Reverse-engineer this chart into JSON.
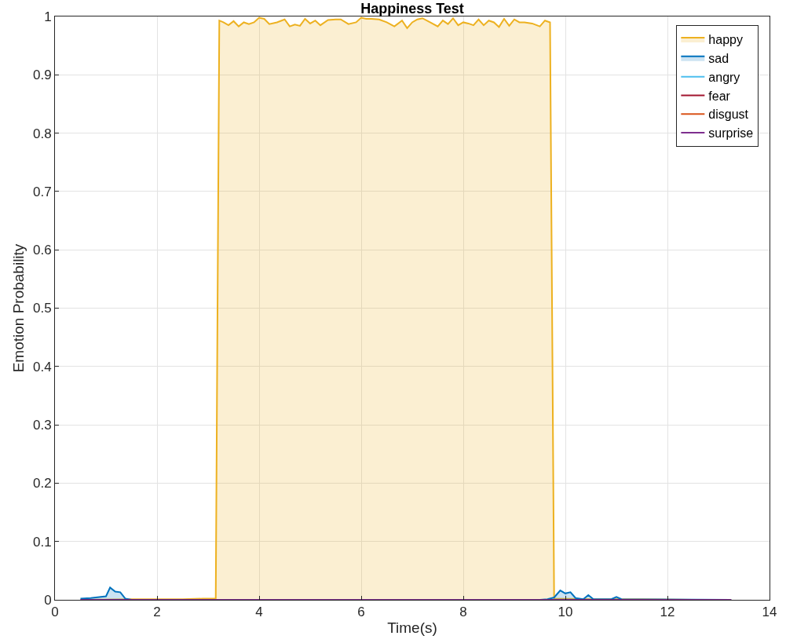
{
  "chart_data": {
    "type": "area",
    "title": "Happiness Test",
    "xlabel": "Time(s)",
    "ylabel": "Emotion Probability",
    "xlim": [
      0,
      14
    ],
    "xticks": [
      0,
      2,
      4,
      6,
      8,
      10,
      12,
      14
    ],
    "ylim": [
      0,
      1
    ],
    "yticks": [
      0,
      0.1,
      0.2,
      0.3,
      0.4,
      0.5,
      0.6,
      0.7,
      0.8,
      0.9,
      1
    ],
    "grid": true,
    "legend": "top right",
    "line_style": "solid",
    "marker": "none",
    "series": [
      {
        "name": "happy",
        "color": "#edb120",
        "x": [
          0.5,
          1.5,
          2.5,
          2.9,
          3.15,
          3.22,
          3.3,
          3.4,
          3.5,
          3.6,
          3.7,
          3.8,
          3.9,
          4.0,
          4.1,
          4.2,
          4.35,
          4.5,
          4.6,
          4.7,
          4.8,
          4.9,
          5.0,
          5.1,
          5.2,
          5.35,
          5.5,
          5.6,
          5.75,
          5.9,
          6.0,
          6.1,
          6.2,
          6.35,
          6.5,
          6.65,
          6.8,
          6.9,
          7.0,
          7.1,
          7.2,
          7.35,
          7.5,
          7.6,
          7.7,
          7.8,
          7.9,
          8.0,
          8.1,
          8.2,
          8.3,
          8.4,
          8.5,
          8.6,
          8.7,
          8.8,
          8.9,
          9.0,
          9.1,
          9.2,
          9.35,
          9.5,
          9.6,
          9.7,
          9.78,
          10.5,
          11.5,
          12.5,
          13.25
        ],
        "values": [
          0,
          0.001,
          0.001,
          0.002,
          0.002,
          0.993,
          0.99,
          0.985,
          0.992,
          0.983,
          0.99,
          0.987,
          0.99,
          0.998,
          0.996,
          0.987,
          0.99,
          0.995,
          0.983,
          0.986,
          0.984,
          0.996,
          0.988,
          0.993,
          0.985,
          0.994,
          0.995,
          0.995,
          0.987,
          0.99,
          0.998,
          0.996,
          0.996,
          0.995,
          0.99,
          0.983,
          0.993,
          0.98,
          0.99,
          0.995,
          0.997,
          0.99,
          0.983,
          0.993,
          0.987,
          0.997,
          0.985,
          0.99,
          0.988,
          0.985,
          0.995,
          0.985,
          0.993,
          0.99,
          0.982,
          0.996,
          0.984,
          0.995,
          0.99,
          0.99,
          0.988,
          0.983,
          0.993,
          0.99,
          0.002,
          0.001,
          0.001,
          0,
          0
        ]
      },
      {
        "name": "sad",
        "color": "#0072bd",
        "x": [
          0.5,
          0.7,
          0.9,
          1.0,
          1.08,
          1.18,
          1.28,
          1.38,
          1.5,
          3.0,
          9.5,
          9.65,
          9.78,
          9.9,
          10.0,
          10.1,
          10.2,
          10.35,
          10.45,
          10.55,
          10.9,
          11.0,
          11.1,
          13.25
        ],
        "values": [
          0.002,
          0.003,
          0.005,
          0.006,
          0.021,
          0.014,
          0.013,
          0.002,
          0,
          0,
          0,
          0.001,
          0.004,
          0.016,
          0.011,
          0.013,
          0.003,
          0.001,
          0.008,
          0.001,
          0.001,
          0.005,
          0.001,
          0
        ]
      },
      {
        "name": "angry",
        "color": "#4dbeee",
        "type": "line"
      },
      {
        "name": "fear",
        "color": "#a2142f",
        "type": "line"
      },
      {
        "name": "disgust",
        "color": "#d95319",
        "type": "line"
      },
      {
        "name": "surprise",
        "color": "#7e2f8e",
        "type": "line",
        "x": [
          0.5,
          13.25
        ],
        "values": [
          0,
          0
        ]
      }
    ]
  }
}
